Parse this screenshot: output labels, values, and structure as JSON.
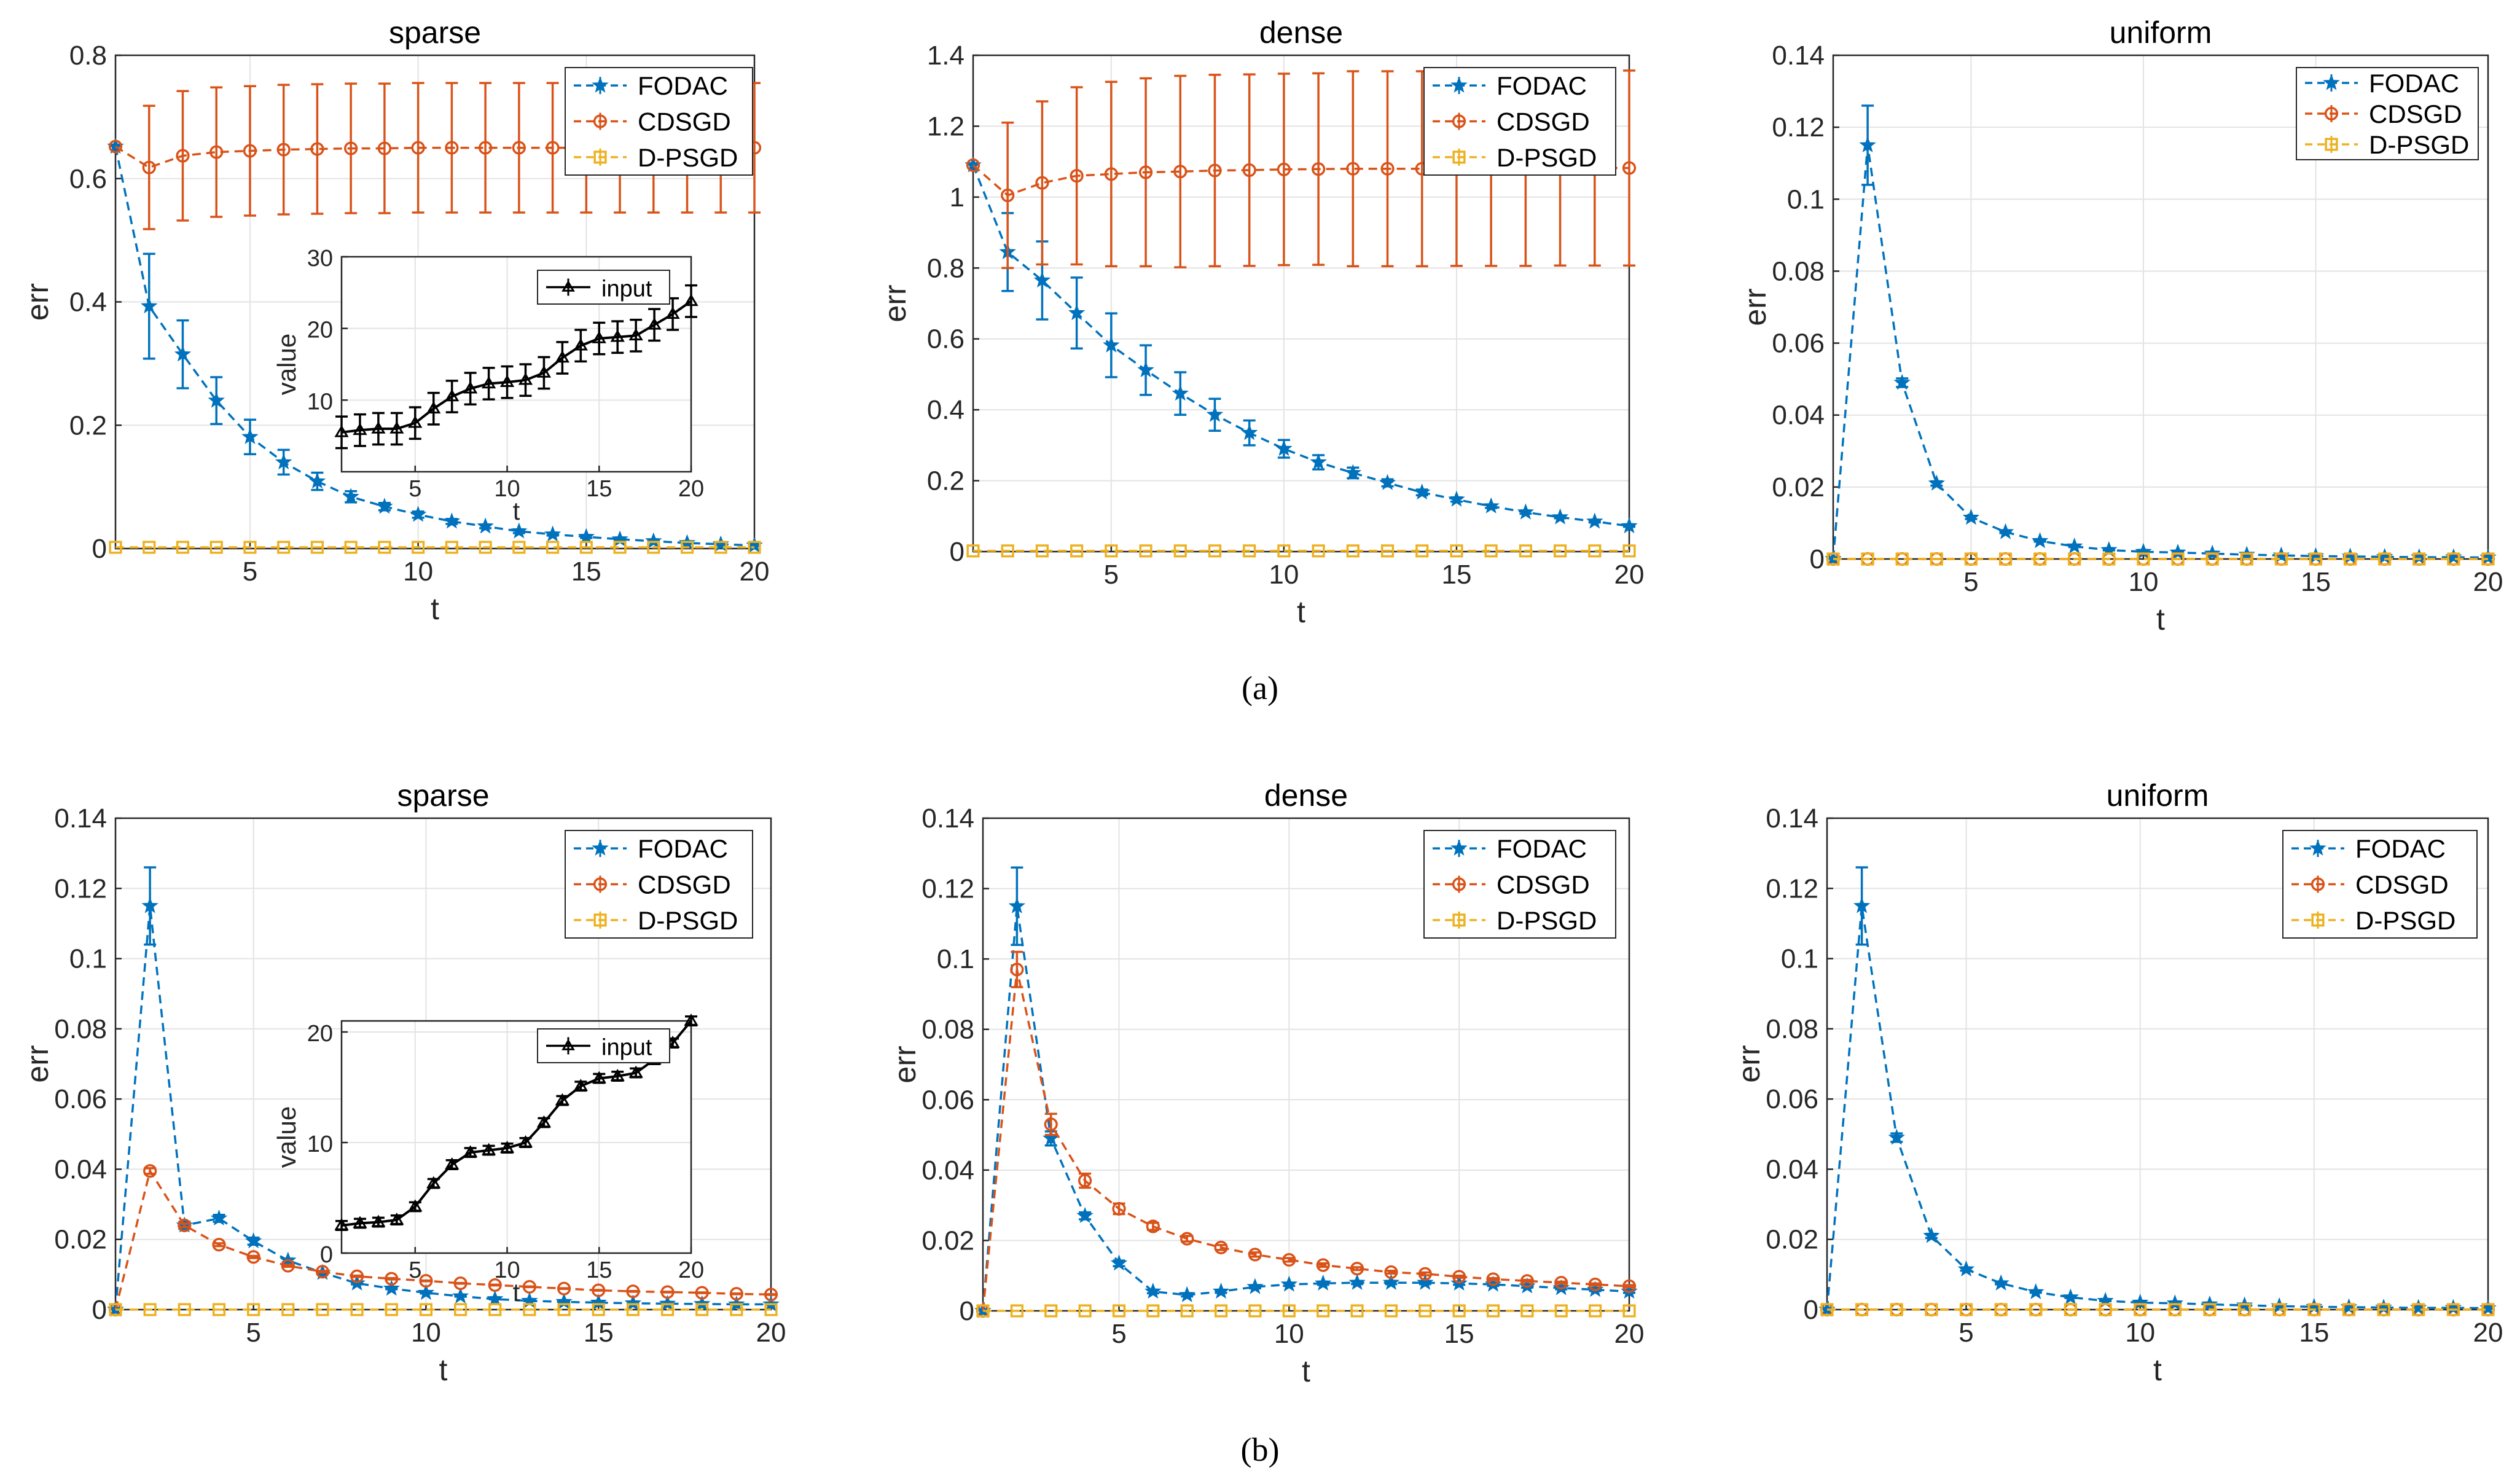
{
  "captions": [
    "(a)",
    "(b)"
  ],
  "colors": {
    "FODAC": "#0072BD",
    "CDSGD": "#D95319",
    "D-PSGD": "#EDB120",
    "input": "#000000"
  },
  "chart_data": [
    {
      "type": "line",
      "title": "sparse",
      "xlabel": "t",
      "ylabel": "err",
      "xlim": [
        1,
        20
      ],
      "ylim": [
        0,
        0.8
      ],
      "xticks": [
        "5",
        "10",
        "15",
        "20"
      ],
      "yticks": [
        "0",
        "0.2",
        "0.4",
        "0.6",
        "0.8"
      ],
      "legend": [
        "FODAC",
        "CDSGD",
        "D-PSGD"
      ],
      "x": [
        1,
        2,
        3,
        4,
        5,
        6,
        7,
        8,
        9,
        10,
        11,
        12,
        13,
        14,
        15,
        16,
        17,
        18,
        19,
        20
      ],
      "series": [
        {
          "name": "FODAC",
          "values": [
            0.652,
            0.393,
            0.315,
            0.24,
            0.181,
            0.14,
            0.109,
            0.084,
            0.068,
            0.055,
            0.044,
            0.036,
            0.028,
            0.023,
            0.019,
            0.015,
            0.012,
            0.009,
            0.007,
            0.005
          ],
          "errors": [
            0,
            0.085,
            0.055,
            0.038,
            0.028,
            0.02,
            0.014,
            0.009,
            0.006,
            0.005,
            0.004,
            0.003,
            0.003,
            0.002,
            0.002,
            0.002,
            0.001,
            0.001,
            0.001,
            0.001
          ]
        },
        {
          "name": "CDSGD",
          "values": [
            0.652,
            0.618,
            0.637,
            0.643,
            0.645,
            0.647,
            0.648,
            0.649,
            0.649,
            0.65,
            0.65,
            0.65,
            0.65,
            0.65,
            0.65,
            0.65,
            0.65,
            0.65,
            0.65,
            0.65
          ],
          "errors": [
            0,
            0.1,
            0.105,
            0.105,
            0.105,
            0.105,
            0.105,
            0.105,
            0.105,
            0.105,
            0.105,
            0.105,
            0.105,
            0.105,
            0.105,
            0.105,
            0.105,
            0.105,
            0.105,
            0.105
          ]
        },
        {
          "name": "D-PSGD",
          "values": [
            0.002,
            0.002,
            0.002,
            0.002,
            0.002,
            0.002,
            0.002,
            0.002,
            0.002,
            0.002,
            0.002,
            0.002,
            0.002,
            0.002,
            0.002,
            0.002,
            0.002,
            0.002,
            0.002,
            0.002
          ]
        }
      ],
      "inset": {
        "xlabel": "t",
        "ylabel": "value",
        "xlim": [
          1,
          20
        ],
        "ylim": [
          0,
          30
        ],
        "xticks": [
          "5",
          "10",
          "15",
          "20"
        ],
        "yticks": [
          "10",
          "20",
          "30"
        ],
        "legend": [
          "input"
        ],
        "x": [
          1,
          2,
          3,
          4,
          5,
          6,
          7,
          8,
          9,
          10,
          11,
          12,
          13,
          14,
          15,
          16,
          17,
          18,
          19,
          20
        ],
        "values": [
          5.5,
          5.8,
          6.0,
          6.0,
          6.8,
          8.8,
          10.5,
          11.6,
          12.3,
          12.5,
          12.8,
          13.8,
          15.9,
          17.6,
          18.6,
          18.8,
          19.0,
          20.5,
          22.0,
          23.8
        ],
        "errors": [
          2.2,
          2.2,
          2.2,
          2.2,
          2.2,
          2.2,
          2.2,
          2.2,
          2.2,
          2.2,
          2.2,
          2.2,
          2.2,
          2.2,
          2.2,
          2.2,
          2.2,
          2.2,
          2.2,
          2.2
        ]
      }
    },
    {
      "type": "line",
      "title": "dense",
      "xlabel": "t",
      "ylabel": "err",
      "xlim": [
        1,
        20
      ],
      "ylim": [
        0,
        1.4
      ],
      "xticks": [
        "5",
        "10",
        "15",
        "20"
      ],
      "yticks": [
        "0",
        "0.2",
        "0.4",
        "0.6",
        "0.8",
        "1",
        "1.2",
        "1.4"
      ],
      "legend": [
        "FODAC",
        "CDSGD",
        "D-PSGD"
      ],
      "x": [
        1,
        2,
        3,
        4,
        5,
        6,
        7,
        8,
        9,
        10,
        11,
        12,
        13,
        14,
        15,
        16,
        17,
        18,
        19,
        20
      ],
      "series": [
        {
          "name": "FODAC",
          "values": [
            1.09,
            0.845,
            0.765,
            0.673,
            0.582,
            0.512,
            0.446,
            0.386,
            0.335,
            0.29,
            0.252,
            0.222,
            0.194,
            0.167,
            0.147,
            0.128,
            0.111,
            0.097,
            0.085,
            0.072
          ],
          "errors": [
            0,
            0.11,
            0.11,
            0.1,
            0.09,
            0.07,
            0.06,
            0.045,
            0.035,
            0.025,
            0.02,
            0.015,
            0.01,
            0.008,
            0.006,
            0.005,
            0.004,
            0.003,
            0.003,
            0.002
          ]
        },
        {
          "name": "CDSGD",
          "values": [
            1.09,
            1.005,
            1.04,
            1.06,
            1.065,
            1.07,
            1.072,
            1.075,
            1.076,
            1.078,
            1.079,
            1.08,
            1.08,
            1.08,
            1.081,
            1.081,
            1.081,
            1.082,
            1.082,
            1.082
          ],
          "errors": [
            0,
            0.205,
            0.23,
            0.25,
            0.26,
            0.265,
            0.27,
            0.27,
            0.27,
            0.27,
            0.27,
            0.275,
            0.275,
            0.275,
            0.275,
            0.275,
            0.275,
            0.275,
            0.275,
            0.275
          ]
        },
        {
          "name": "D-PSGD",
          "values": [
            0.002,
            0.002,
            0.002,
            0.002,
            0.002,
            0.002,
            0.002,
            0.002,
            0.002,
            0.002,
            0.002,
            0.002,
            0.002,
            0.002,
            0.002,
            0.002,
            0.002,
            0.002,
            0.002,
            0.002
          ]
        }
      ]
    },
    {
      "type": "line",
      "title": "uniform",
      "xlabel": "t",
      "ylabel": "err",
      "xlim": [
        1,
        20
      ],
      "ylim": [
        0,
        0.14
      ],
      "xticks": [
        "5",
        "10",
        "15",
        "20"
      ],
      "yticks": [
        "0",
        "0.02",
        "0.04",
        "0.06",
        "0.08",
        "0.1",
        "0.12",
        "0.14"
      ],
      "legend": [
        "FODAC",
        "CDSGD",
        "D-PSGD"
      ],
      "x": [
        1,
        2,
        3,
        4,
        5,
        6,
        7,
        8,
        9,
        10,
        11,
        12,
        13,
        14,
        15,
        16,
        17,
        18,
        19,
        20
      ],
      "series": [
        {
          "name": "FODAC",
          "values": [
            0,
            0.115,
            0.049,
            0.021,
            0.0115,
            0.0075,
            0.005,
            0.0035,
            0.0025,
            0.002,
            0.0018,
            0.0015,
            0.0012,
            0.001,
            0.0008,
            0.0007,
            0.0006,
            0.0005,
            0.0005,
            0.0004
          ],
          "errors": [
            0,
            0.011,
            0.0012,
            0.0006,
            0.0004,
            0.0003,
            0.0002,
            0.0002,
            0.0001,
            0.0001,
            0.0001,
            0.0001,
            0.0001,
            0.0001,
            0.0001,
            0.0001,
            0.0001,
            0.0001,
            0.0001,
            0.0001
          ]
        },
        {
          "name": "CDSGD",
          "values": [
            0,
            0,
            0,
            0,
            0,
            0,
            0,
            0,
            0,
            0,
            0,
            0,
            0,
            0,
            0,
            0,
            0,
            0,
            0,
            0
          ]
        },
        {
          "name": "D-PSGD",
          "values": [
            0,
            0,
            0,
            0,
            0,
            0,
            0,
            0,
            0,
            0,
            0,
            0,
            0,
            0,
            0,
            0,
            0,
            0,
            0,
            0
          ]
        }
      ]
    },
    {
      "type": "line",
      "title": "sparse",
      "xlabel": "t",
      "ylabel": "err",
      "xlim": [
        1,
        20
      ],
      "ylim": [
        0,
        0.14
      ],
      "xticks": [
        "5",
        "10",
        "15",
        "20"
      ],
      "yticks": [
        "0",
        "0.02",
        "0.04",
        "0.06",
        "0.08",
        "0.1",
        "0.12",
        "0.14"
      ],
      "legend": [
        "FODAC",
        "CDSGD",
        "D-PSGD"
      ],
      "x": [
        1,
        2,
        3,
        4,
        5,
        6,
        7,
        8,
        9,
        10,
        11,
        12,
        13,
        14,
        15,
        16,
        17,
        18,
        19,
        20
      ],
      "series": [
        {
          "name": "FODAC",
          "values": [
            0,
            0.115,
            0.024,
            0.026,
            0.0195,
            0.014,
            0.0105,
            0.0075,
            0.006,
            0.0048,
            0.0038,
            0.003,
            0.0025,
            0.0022,
            0.002,
            0.0018,
            0.0017,
            0.0016,
            0.0015,
            0.0015
          ],
          "errors": [
            0,
            0.011,
            0.001,
            0.001,
            0.001,
            0.0005,
            0.0004,
            0.0003,
            0.0002,
            0.0002,
            0.0001,
            0.0001,
            0.0001,
            0.0001,
            0.0001,
            0.0001,
            0.0001,
            0.0001,
            0.0001,
            0.0001
          ]
        },
        {
          "name": "CDSGD",
          "values": [
            0,
            0.0395,
            0.024,
            0.0185,
            0.015,
            0.0125,
            0.0108,
            0.0095,
            0.0088,
            0.0082,
            0.0075,
            0.007,
            0.0065,
            0.006,
            0.0055,
            0.0052,
            0.005,
            0.0048,
            0.0045,
            0.0043
          ],
          "errors": [
            0,
            0.0008,
            0.0005,
            0.0004,
            0.0003,
            0.0003,
            0.0002,
            0.0002,
            0.0002,
            0.0001,
            0.0001,
            0.0001,
            0.0001,
            0.0001,
            0.0001,
            0.0001,
            0.0001,
            0.0001,
            0.0001,
            0.0001
          ]
        },
        {
          "name": "D-PSGD",
          "values": [
            0,
            0,
            0,
            0,
            0,
            0,
            0,
            0,
            0,
            0,
            0,
            0,
            0,
            0,
            0,
            0,
            0,
            0,
            0,
            0
          ]
        }
      ],
      "inset": {
        "xlabel": "t",
        "ylabel": "value",
        "xlim": [
          1,
          20
        ],
        "ylim": [
          0,
          21
        ],
        "xticks": [
          "5",
          "10",
          "15",
          "20"
        ],
        "yticks": [
          "0",
          "10",
          "20"
        ],
        "legend": [
          "input"
        ],
        "x": [
          1,
          2,
          3,
          4,
          5,
          6,
          7,
          8,
          9,
          10,
          11,
          12,
          13,
          14,
          15,
          16,
          17,
          18,
          19,
          20
        ],
        "values": [
          2.5,
          2.7,
          2.8,
          3.0,
          4.2,
          6.3,
          8.0,
          9.1,
          9.3,
          9.5,
          10.0,
          11.8,
          13.8,
          15.1,
          15.8,
          16.0,
          16.3,
          17.5,
          19.0,
          21.0
        ],
        "errors": [
          0.4,
          0.4,
          0.4,
          0.4,
          0.4,
          0.4,
          0.4,
          0.4,
          0.4,
          0.4,
          0.4,
          0.4,
          0.4,
          0.4,
          0.4,
          0.4,
          0.4,
          0.4,
          0.4,
          0.4
        ]
      }
    },
    {
      "type": "line",
      "title": "dense",
      "xlabel": "t",
      "ylabel": "err",
      "xlim": [
        1,
        20
      ],
      "ylim": [
        0,
        0.14
      ],
      "xticks": [
        "5",
        "10",
        "15",
        "20"
      ],
      "yticks": [
        "0",
        "0.02",
        "0.04",
        "0.06",
        "0.08",
        "0.1",
        "0.12",
        "0.14"
      ],
      "legend": [
        "FODAC",
        "CDSGD",
        "D-PSGD"
      ],
      "x": [
        1,
        2,
        3,
        4,
        5,
        6,
        7,
        8,
        9,
        10,
        11,
        12,
        13,
        14,
        15,
        16,
        17,
        18,
        19,
        20
      ],
      "series": [
        {
          "name": "FODAC",
          "values": [
            0,
            0.115,
            0.049,
            0.027,
            0.0135,
            0.0055,
            0.0045,
            0.0055,
            0.0068,
            0.0075,
            0.0078,
            0.008,
            0.008,
            0.008,
            0.0078,
            0.0075,
            0.007,
            0.0065,
            0.006,
            0.0055
          ],
          "errors": [
            0,
            0.011,
            0.002,
            0.001,
            0.0008,
            0.0005,
            0.0004,
            0.0004,
            0.0004,
            0.0004,
            0.0004,
            0.0004,
            0.0004,
            0.0004,
            0.0004,
            0.0004,
            0.0004,
            0.0004,
            0.0004,
            0.0004
          ]
        },
        {
          "name": "CDSGD",
          "values": [
            0,
            0.097,
            0.053,
            0.037,
            0.029,
            0.024,
            0.0205,
            0.018,
            0.016,
            0.0145,
            0.013,
            0.012,
            0.011,
            0.0105,
            0.0097,
            0.009,
            0.0085,
            0.008,
            0.0075,
            0.007
          ],
          "errors": [
            0,
            0.005,
            0.003,
            0.002,
            0.0015,
            0.001,
            0.0008,
            0.0007,
            0.0006,
            0.0005,
            0.0005,
            0.0004,
            0.0004,
            0.0004,
            0.0003,
            0.0003,
            0.0003,
            0.0003,
            0.0003,
            0.0003
          ]
        },
        {
          "name": "D-PSGD",
          "values": [
            0,
            0,
            0,
            0,
            0,
            0,
            0,
            0,
            0,
            0,
            0,
            0,
            0,
            0,
            0,
            0,
            0,
            0,
            0,
            0
          ]
        }
      ]
    },
    {
      "type": "line",
      "title": "uniform",
      "xlabel": "t",
      "ylabel": "err",
      "xlim": [
        1,
        20
      ],
      "ylim": [
        0,
        0.14
      ],
      "xticks": [
        "5",
        "10",
        "15",
        "20"
      ],
      "yticks": [
        "0",
        "0.02",
        "0.04",
        "0.06",
        "0.08",
        "0.1",
        "0.12",
        "0.14"
      ],
      "legend": [
        "FODAC",
        "CDSGD",
        "D-PSGD"
      ],
      "x": [
        1,
        2,
        3,
        4,
        5,
        6,
        7,
        8,
        9,
        10,
        11,
        12,
        13,
        14,
        15,
        16,
        17,
        18,
        19,
        20
      ],
      "series": [
        {
          "name": "FODAC",
          "values": [
            0,
            0.115,
            0.049,
            0.021,
            0.0115,
            0.0075,
            0.005,
            0.0035,
            0.0025,
            0.002,
            0.0018,
            0.0015,
            0.0012,
            0.001,
            0.0008,
            0.0007,
            0.0006,
            0.0005,
            0.0005,
            0.0004
          ],
          "errors": [
            0,
            0.011,
            0.0012,
            0.0006,
            0.0004,
            0.0003,
            0.0002,
            0.0002,
            0.0001,
            0.0001,
            0.0001,
            0.0001,
            0.0001,
            0.0001,
            0.0001,
            0.0001,
            0.0001,
            0.0001,
            0.0001,
            0.0001
          ]
        },
        {
          "name": "CDSGD",
          "values": [
            0,
            0,
            0,
            0,
            0,
            0,
            0,
            0,
            0,
            0,
            0,
            0,
            0,
            0,
            0,
            0,
            0,
            0,
            0,
            0
          ]
        },
        {
          "name": "D-PSGD",
          "values": [
            0,
            0,
            0,
            0,
            0,
            0,
            0,
            0,
            0,
            0,
            0,
            0,
            0,
            0,
            0,
            0,
            0,
            0,
            0,
            0
          ]
        }
      ]
    }
  ]
}
